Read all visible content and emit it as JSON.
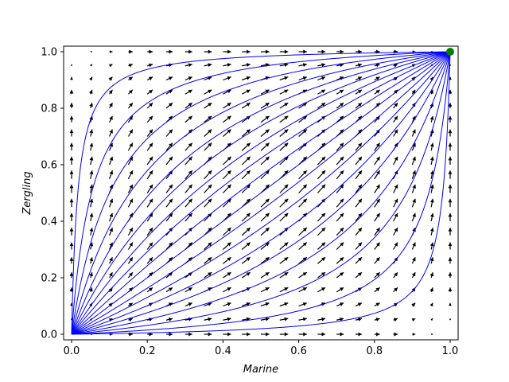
{
  "chart_data": {
    "type": "quiver",
    "xlabel": "Marine",
    "ylabel": "Zergling",
    "xlim": [
      0.0,
      1.0
    ],
    "ylim": [
      0.0,
      1.0
    ],
    "xticks": [
      "0.0",
      "0.2",
      "0.4",
      "0.6",
      "0.8",
      "1.0"
    ],
    "yticks": [
      "0.0",
      "0.2",
      "0.4",
      "0.6",
      "0.8",
      "1.0"
    ],
    "grid": false,
    "colors": {
      "trajectory": "#0000ff",
      "arrow": "#000000",
      "fixed_point": "#008000"
    },
    "vector_field": {
      "x_grid": [
        0.0,
        0.05,
        0.1,
        0.15,
        0.2,
        0.25,
        0.3,
        0.35,
        0.4,
        0.45,
        0.5,
        0.55,
        0.6,
        0.65,
        0.7,
        0.75,
        0.8,
        0.85,
        0.9,
        0.95,
        1.0
      ],
      "y_grid": [
        0.0,
        0.05,
        0.1,
        0.15,
        0.2,
        0.25,
        0.3,
        0.35,
        0.4,
        0.45,
        0.5,
        0.55,
        0.6,
        0.65,
        0.7,
        0.75,
        0.8,
        0.85,
        0.9,
        0.95,
        1.0
      ],
      "dynamics": "dx/dt = x(1-x), dy/dt = y(1-y)"
    },
    "trajectories": [
      {
        "start": [
          0.0,
          0.0
        ],
        "end": [
          1.0,
          1.0
        ],
        "ratio_k": 0.02
      },
      {
        "start": [
          0.0,
          0.0
        ],
        "end": [
          1.0,
          1.0
        ],
        "ratio_k": 0.06
      },
      {
        "start": [
          0.0,
          0.0
        ],
        "end": [
          1.0,
          1.0
        ],
        "ratio_k": 0.13
      },
      {
        "start": [
          0.0,
          0.0
        ],
        "end": [
          1.0,
          1.0
        ],
        "ratio_k": 0.22
      },
      {
        "start": [
          0.0,
          0.0
        ],
        "end": [
          1.0,
          1.0
        ],
        "ratio_k": 0.33
      },
      {
        "start": [
          0.0,
          0.0
        ],
        "end": [
          1.0,
          1.0
        ],
        "ratio_k": 0.45
      },
      {
        "start": [
          0.0,
          0.0
        ],
        "end": [
          1.0,
          1.0
        ],
        "ratio_k": 0.6
      },
      {
        "start": [
          0.0,
          0.0
        ],
        "end": [
          1.0,
          1.0
        ],
        "ratio_k": 0.78
      },
      {
        "start": [
          0.0,
          0.0
        ],
        "end": [
          1.0,
          1.0
        ],
        "ratio_k": 1.0
      },
      {
        "start": [
          0.0,
          0.0
        ],
        "end": [
          1.0,
          1.0
        ],
        "ratio_k": 1.28
      },
      {
        "start": [
          0.0,
          0.0
        ],
        "end": [
          1.0,
          1.0
        ],
        "ratio_k": 1.65
      },
      {
        "start": [
          0.0,
          0.0
        ],
        "end": [
          1.0,
          1.0
        ],
        "ratio_k": 2.1
      },
      {
        "start": [
          0.0,
          0.0
        ],
        "end": [
          1.0,
          1.0
        ],
        "ratio_k": 2.8
      },
      {
        "start": [
          0.0,
          0.0
        ],
        "end": [
          1.0,
          1.0
        ],
        "ratio_k": 3.8
      },
      {
        "start": [
          0.0,
          0.0
        ],
        "end": [
          1.0,
          1.0
        ],
        "ratio_k": 5.5
      },
      {
        "start": [
          0.0,
          0.0
        ],
        "end": [
          1.0,
          1.0
        ],
        "ratio_k": 9.0
      },
      {
        "start": [
          0.0,
          0.0
        ],
        "end": [
          1.0,
          1.0
        ],
        "ratio_k": 18.0
      },
      {
        "start": [
          0.0,
          0.0
        ],
        "end": [
          1.0,
          1.0
        ],
        "ratio_k": 60.0
      }
    ],
    "fixed_points": [
      {
        "x": 1.0,
        "y": 1.0,
        "label": "stable"
      }
    ]
  }
}
